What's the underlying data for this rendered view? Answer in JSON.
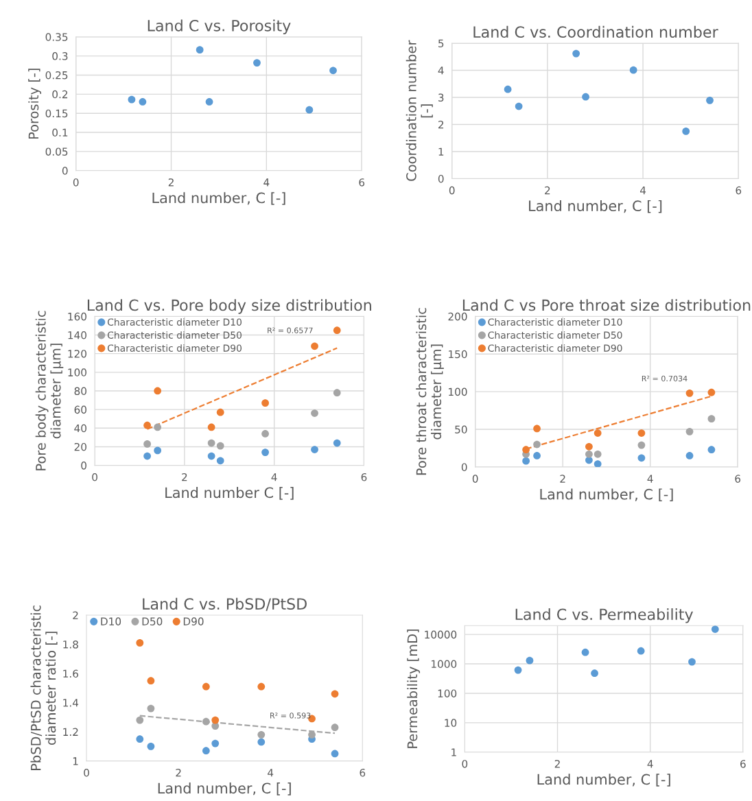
{
  "chart_data": [
    {
      "type": "scatter",
      "title": "Land C vs. Porosity",
      "xlabel": "Land number, C [-]",
      "ylabel": "Porosity [-]",
      "xlim": [
        0,
        6
      ],
      "xticks": [
        0,
        2,
        4,
        6
      ],
      "ylim": [
        0,
        0.35
      ],
      "yticks": [
        0,
        0.05,
        0.1,
        0.15,
        0.2,
        0.25,
        0.3,
        0.35
      ],
      "grid": true,
      "marker": "circle",
      "legend": false,
      "x": [
        1.17,
        1.4,
        2.6,
        2.8,
        3.8,
        4.9,
        5.4
      ],
      "series": [
        {
          "color": "#5b9bd5",
          "values": [
            0.186,
            0.18,
            0.316,
            0.18,
            0.282,
            0.159,
            0.262
          ]
        }
      ]
    },
    {
      "type": "scatter",
      "title": "Land C vs. Coordination number",
      "xlabel": "Land number, C [-]",
      "ylabel": "Coordination number\n[-]",
      "xlim": [
        0,
        6
      ],
      "xticks": [
        0,
        2,
        4,
        6
      ],
      "ylim": [
        0,
        5
      ],
      "yticks": [
        0,
        1,
        2,
        3,
        4,
        5
      ],
      "grid": true,
      "marker": "circle",
      "legend": false,
      "x": [
        1.17,
        1.4,
        2.6,
        2.8,
        3.8,
        4.9,
        5.4
      ],
      "series": [
        {
          "color": "#5b9bd5",
          "values": [
            3.3,
            2.67,
            4.62,
            3.02,
            4.01,
            1.75,
            2.89
          ]
        }
      ]
    },
    {
      "type": "scatter",
      "title": "Land C vs. Pore body size distribution",
      "xlabel": "Land number C [-]",
      "ylabel": "Pore body characteristic\ndiameter [µm]",
      "xlim": [
        0,
        6
      ],
      "xticks": [
        0,
        2,
        4,
        6
      ],
      "ylim": [
        0,
        160
      ],
      "yticks": [
        0,
        20,
        40,
        60,
        80,
        100,
        120,
        140,
        160
      ],
      "grid": true,
      "marker": "circle",
      "legend": "top left",
      "x": [
        1.17,
        1.4,
        2.6,
        2.8,
        3.8,
        4.9,
        5.4
      ],
      "series": [
        {
          "name": "Characteristic diameter D10",
          "color": "#5b9bd5",
          "values": [
            10,
            16,
            10,
            5,
            14,
            17,
            24
          ]
        },
        {
          "name": "Characteristic diameter D50",
          "color": "#a5a5a5",
          "values": [
            23,
            41,
            24,
            21,
            34,
            56,
            78
          ]
        },
        {
          "name": "Characteristic diameter D90",
          "color": "#ed7d31",
          "values": [
            43,
            80,
            41,
            57,
            67,
            128,
            145
          ]
        },
        {
          "type": "line",
          "color": "#ed7d31",
          "marker": "none",
          "line_style": "dashed",
          "x": [
            1.17,
            5.4
          ],
          "values": [
            39,
            126
          ]
        }
      ],
      "annotations": [
        "R² = 0.6577"
      ]
    },
    {
      "type": "scatter",
      "title": "Land C vs Pore throat size distribution",
      "xlabel": "Land number, C [-]",
      "ylabel": "Pore throat characteristic\ndiameter [µm]",
      "xlim": [
        0,
        6
      ],
      "xticks": [
        0,
        2,
        4,
        6
      ],
      "ylim": [
        0,
        200
      ],
      "yticks": [
        0,
        50,
        100,
        150,
        200
      ],
      "grid": true,
      "marker": "circle",
      "legend": "top left",
      "x": [
        1.16,
        1.41,
        2.6,
        2.8,
        3.8,
        4.9,
        5.4
      ],
      "series": [
        {
          "name": "Characteristic diameter D10",
          "color": "#5b9bd5",
          "values": [
            8,
            15,
            9,
            4,
            12,
            15,
            23
          ]
        },
        {
          "name": "Characteristic diameter D50",
          "color": "#a5a5a5",
          "values": [
            17,
            30,
            17,
            17,
            29,
            47,
            64
          ]
        },
        {
          "name": "Characteristic diameter D90",
          "color": "#ed7d31",
          "values": [
            23,
            51,
            27,
            45,
            45,
            98,
            99
          ]
        },
        {
          "type": "line",
          "color": "#ed7d31",
          "marker": "none",
          "line_style": "dashed",
          "x": [
            1.16,
            5.4
          ],
          "values": [
            24,
            94
          ]
        }
      ],
      "annotations": [
        "R² = 0.7034"
      ]
    },
    {
      "type": "scatter",
      "title": "Land C vs. PbSD/PtSD",
      "xlabel": "Land number, C [-]",
      "ylabel": "PbSD/PtSD characteristic\ndiameter ratio [-]",
      "xlim": [
        0,
        6
      ],
      "xticks": [
        0,
        2,
        4,
        6
      ],
      "ylim": [
        1,
        2
      ],
      "yticks": [
        1,
        1.2,
        1.4,
        1.6,
        1.8,
        2
      ],
      "grid": false,
      "marker": "circle",
      "legend": "top left",
      "x": [
        1.16,
        1.4,
        2.6,
        2.8,
        3.8,
        4.9,
        5.4
      ],
      "series": [
        {
          "name": "D10",
          "color": "#5b9bd5",
          "values": [
            1.15,
            1.1,
            1.07,
            1.12,
            1.13,
            1.15,
            1.05
          ]
        },
        {
          "name": "D50",
          "color": "#a5a5a5",
          "values": [
            1.28,
            1.36,
            1.27,
            1.24,
            1.18,
            1.18,
            1.23
          ]
        },
        {
          "name": "D90",
          "color": "#ed7d31",
          "values": [
            1.81,
            1.55,
            1.51,
            1.28,
            1.51,
            1.29,
            1.46
          ]
        },
        {
          "type": "line",
          "color": "#a5a5a5",
          "marker": "none",
          "line_style": "dashed",
          "x": [
            1.16,
            5.4
          ],
          "values": [
            1.31,
            1.19
          ]
        }
      ],
      "annotations": [
        "R² = 0.593"
      ]
    },
    {
      "type": "scatter",
      "title": "Land C vs. Permeability",
      "xlabel": "Land number, C [-]",
      "ylabel": "Permeability [mD]",
      "log": "y",
      "xlim": [
        0,
        6
      ],
      "xticks": [
        0,
        2,
        4,
        6
      ],
      "ylim": [
        1,
        20000
      ],
      "yticks": [
        1,
        10,
        100,
        1000,
        10000
      ],
      "grid": true,
      "marker": "circle",
      "legend": false,
      "x": [
        1.15,
        1.4,
        2.6,
        2.8,
        3.8,
        4.9,
        5.4
      ],
      "series": [
        {
          "color": "#5b9bd5",
          "values": [
            615,
            1300,
            2470,
            480,
            2750,
            1170,
            15000
          ]
        }
      ]
    }
  ]
}
